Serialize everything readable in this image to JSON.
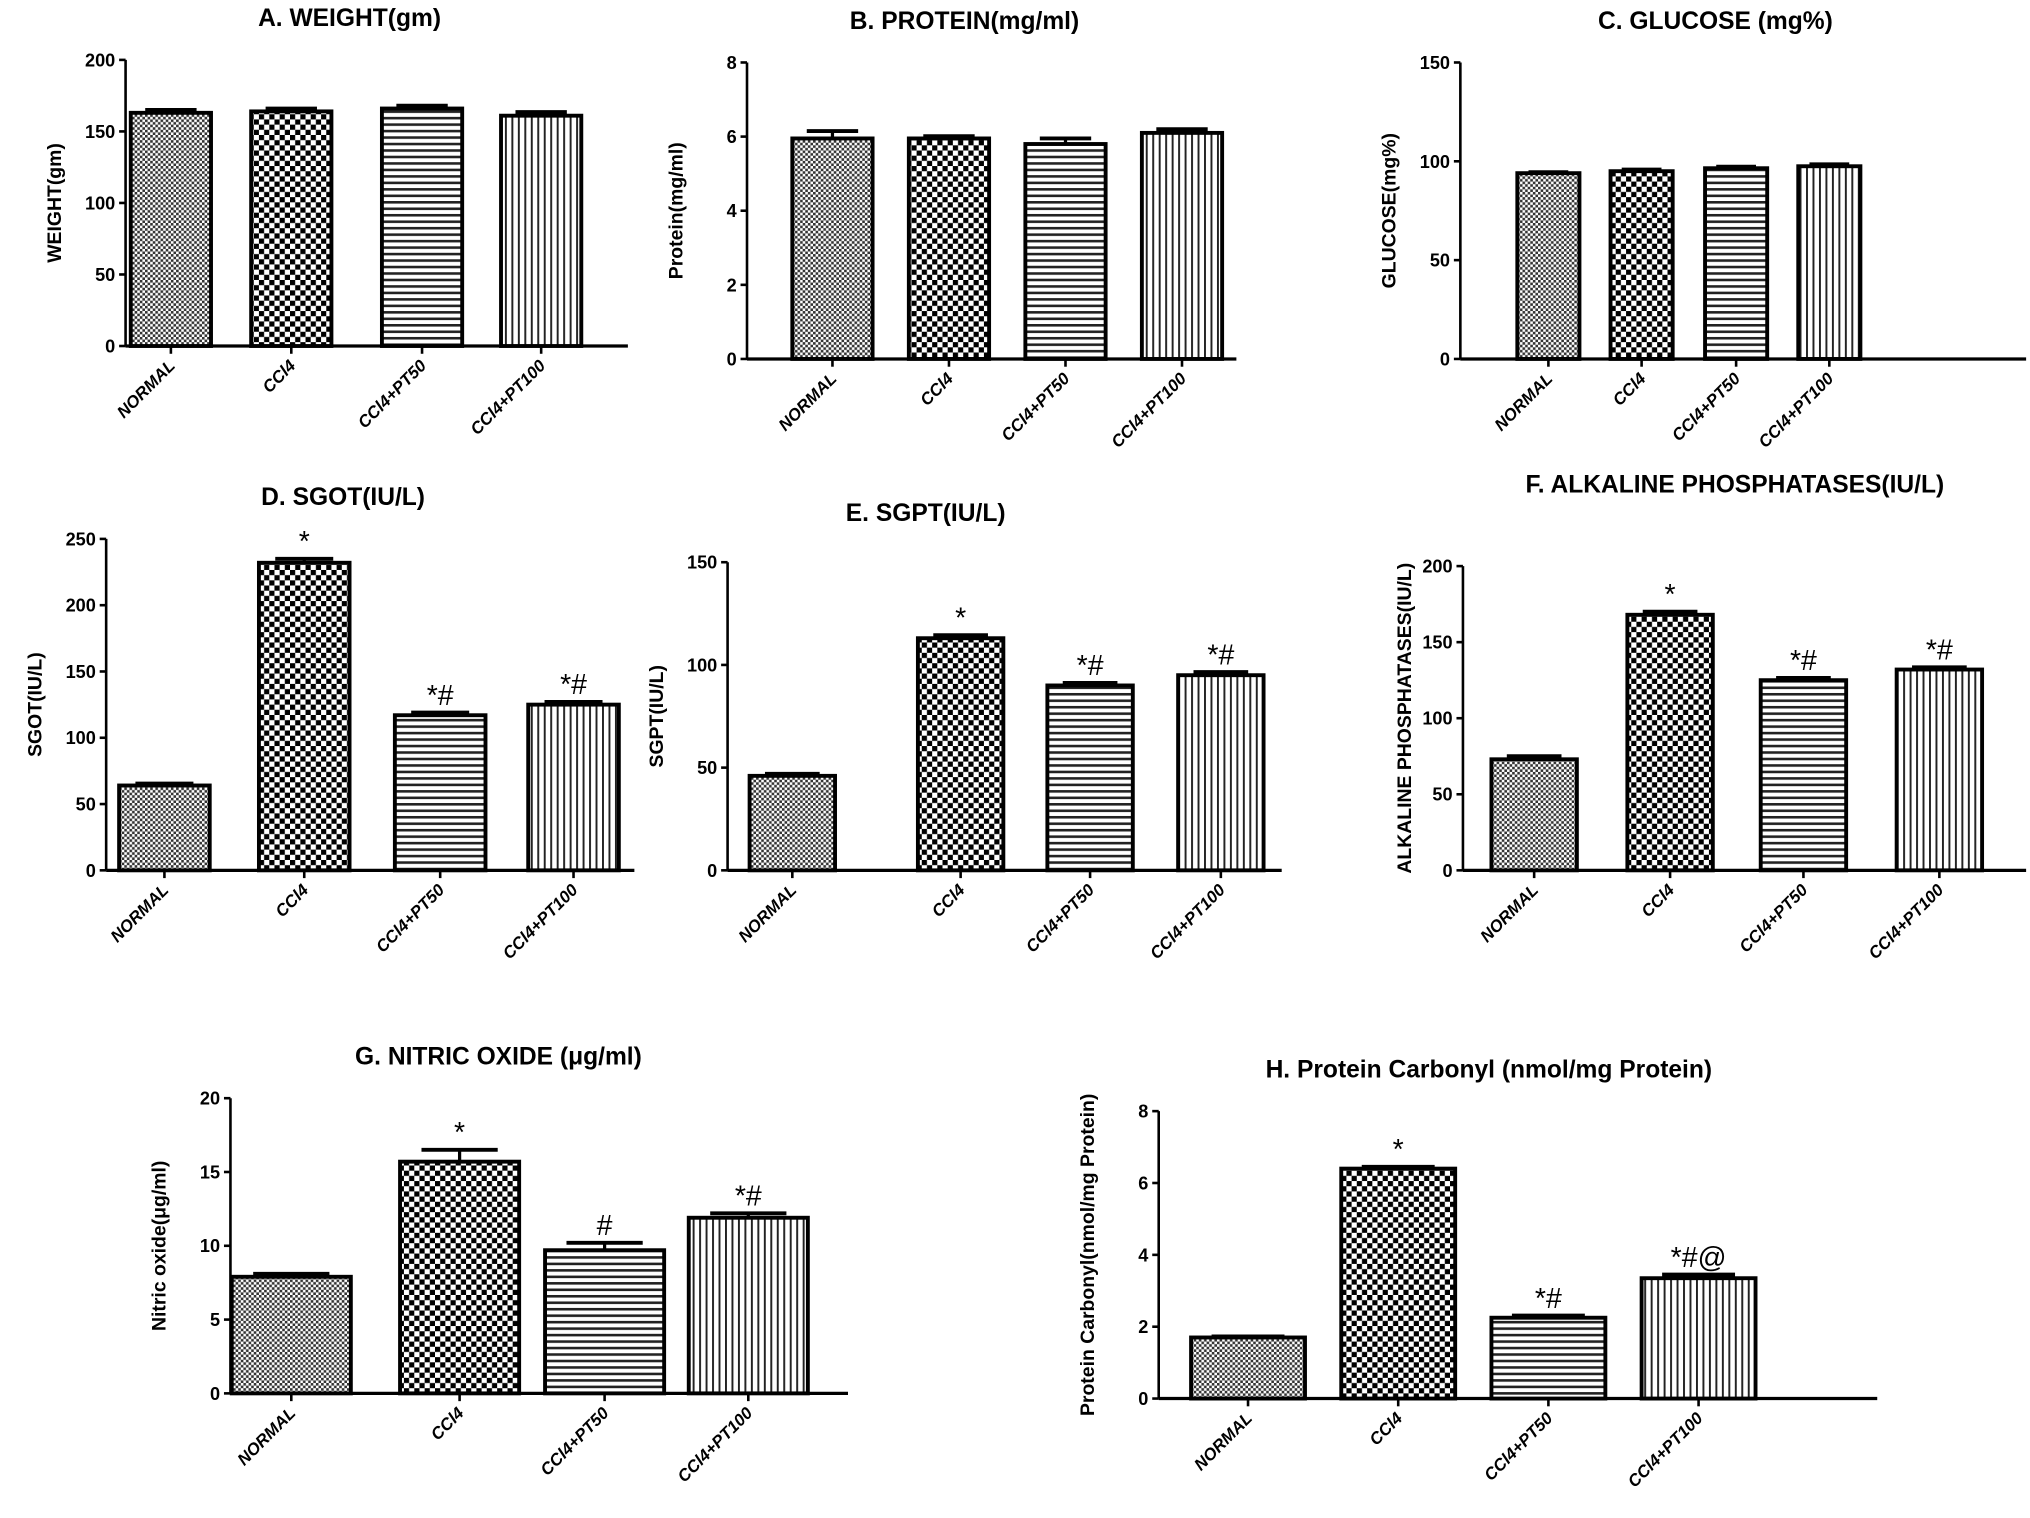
{
  "chart_data": [
    {
      "type": "bar",
      "title": "A. WEIGHT(gm)",
      "ylabel": "WEIGHT(gm)",
      "ylim": [
        0,
        200
      ],
      "yticks": [
        0,
        50,
        100,
        150,
        200
      ],
      "categories": [
        "NORMAL",
        "CCl4",
        "CCl4+PT50",
        "CCl4+PT100"
      ],
      "values": [
        163,
        164,
        166,
        161
      ],
      "errors": [
        2,
        2,
        2,
        2.5
      ],
      "annotations": [
        "",
        "",
        "",
        ""
      ]
    },
    {
      "type": "bar",
      "title": "B. PROTEIN(mg/ml)",
      "ylabel": "Protein(mg/ml)",
      "ylim": [
        0,
        8
      ],
      "yticks": [
        0,
        2,
        4,
        6,
        8
      ],
      "categories": [
        "NORMAL",
        "CCl4",
        "CCl4+PT50",
        "CCl4+PT100"
      ],
      "values": [
        5.95,
        5.95,
        5.8,
        6.1
      ],
      "errors": [
        0.2,
        0.06,
        0.15,
        0.1
      ],
      "annotations": [
        "",
        "",
        "",
        ""
      ]
    },
    {
      "type": "bar",
      "title": "C. GLUCOSE (mg%)",
      "ylabel": "GLUCOSE(mg%)",
      "ylim": [
        0,
        150
      ],
      "yticks": [
        0,
        50,
        100,
        150
      ],
      "categories": [
        "NORMAL",
        "CCl4",
        "CCl4+PT50",
        "CCl4+PT100"
      ],
      "values": [
        94,
        95,
        96.5,
        97.5
      ],
      "errors": [
        0.5,
        0.8,
        0.8,
        1
      ],
      "annotations": [
        "",
        "",
        "",
        ""
      ]
    },
    {
      "type": "bar",
      "title": "D. SGOT(IU/L)",
      "ylabel": "SGOT(IU/L)",
      "ylim": [
        0,
        250
      ],
      "yticks": [
        0,
        50,
        100,
        150,
        200,
        250
      ],
      "categories": [
        "NORMAL",
        "CCl4",
        "CCl4+PT50",
        "CCl4+PT100"
      ],
      "values": [
        64,
        232,
        117,
        125
      ],
      "errors": [
        1.5,
        3,
        2,
        2
      ],
      "annotations": [
        "",
        "*",
        "*#",
        "*#"
      ]
    },
    {
      "type": "bar",
      "title": "E. SGPT(IU/L)",
      "ylabel": "SGPT(IU/L)",
      "ylim": [
        0,
        150
      ],
      "yticks": [
        0,
        50,
        100,
        150
      ],
      "categories": [
        "NORMAL",
        "CCl4",
        "CCl4+PT50",
        "CCl4+PT100"
      ],
      "values": [
        46,
        113,
        90,
        95
      ],
      "errors": [
        1,
        1.5,
        1.2,
        1.5
      ],
      "annotations": [
        "",
        "*",
        "*#",
        "*#"
      ]
    },
    {
      "type": "bar",
      "title": "F. ALKALINE PHOSPHATASES(IU/L)",
      "ylabel": "ALKALINE PHOSPHATASES(IU/L)",
      "ylim": [
        0,
        200
      ],
      "yticks": [
        0,
        50,
        100,
        150,
        200
      ],
      "categories": [
        "NORMAL",
        "CCl4",
        "CCl4+PT50",
        "CCl4+PT100"
      ],
      "values": [
        73,
        168,
        125,
        132
      ],
      "errors": [
        2,
        2,
        1.5,
        1.5
      ],
      "annotations": [
        "",
        "*",
        "*#",
        "*#"
      ]
    },
    {
      "type": "bar",
      "title": "G. NITRIC OXIDE (μg/ml)",
      "ylabel": "Nitric oxide(μg/ml)",
      "ylim": [
        0,
        20
      ],
      "yticks": [
        0,
        5,
        10,
        15,
        20
      ],
      "categories": [
        "NORMAL",
        "CCl4",
        "CCl4+PT50",
        "CCl4+PT100"
      ],
      "values": [
        7.9,
        15.7,
        9.7,
        11.9
      ],
      "errors": [
        0.2,
        0.8,
        0.5,
        0.3
      ],
      "annotations": [
        "",
        "*",
        "#",
        "*#"
      ]
    },
    {
      "type": "bar",
      "title": "H. Protein Carbonyl (nmol/mg Protein)",
      "ylabel": "Protein Carbonyl(nmol/mg Protein)",
      "ylim": [
        0,
        8
      ],
      "yticks": [
        0,
        2,
        4,
        6,
        8
      ],
      "categories": [
        "NORMAL",
        "CCl4",
        "CCl4+PT50",
        "CCl4+PT100"
      ],
      "values": [
        1.7,
        6.4,
        2.25,
        3.35
      ],
      "errors": [
        0.03,
        0.05,
        0.06,
        0.1
      ],
      "annotations": [
        "",
        "*",
        "*#",
        "*#@"
      ]
    }
  ],
  "fill_patterns": [
    "fine-checker",
    "coarse-checker",
    "horizontal-lines",
    "vertical-lines"
  ],
  "colors": {
    "ink": "#000000",
    "background": "#ffffff"
  }
}
